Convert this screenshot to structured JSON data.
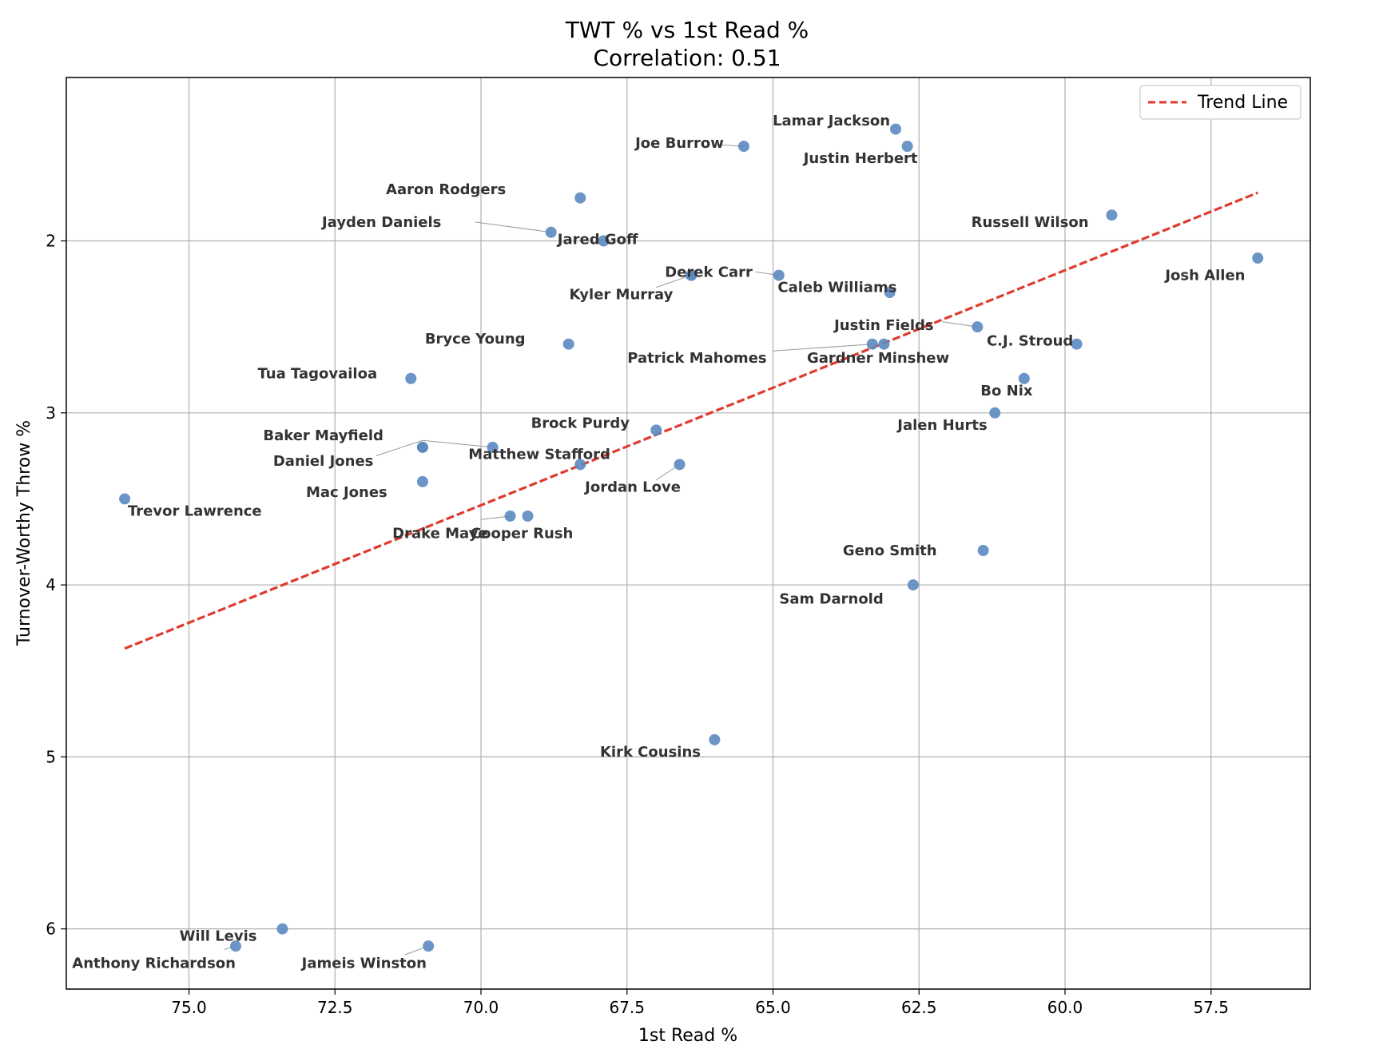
{
  "chart_data": {
    "type": "scatter",
    "title": "TWT % vs 1st Read %",
    "subtitle": "Correlation: 0.51",
    "xlabel": "1st Read %",
    "ylabel": "Turnover-Worthy Throw %",
    "xlim": [
      77.1,
      55.8
    ],
    "ylim": [
      6.35,
      1.05
    ],
    "x_inverted": true,
    "y_inverted": true,
    "xticks": [
      75.0,
      72.5,
      70.0,
      67.5,
      65.0,
      62.5,
      60.0,
      57.5
    ],
    "xtick_labels": [
      "75.0",
      "72.5",
      "70.0",
      "67.5",
      "65.0",
      "62.5",
      "60.0",
      "57.5"
    ],
    "yticks": [
      2,
      3,
      4,
      5,
      6
    ],
    "ytick_labels": [
      "2",
      "3",
      "4",
      "5",
      "6"
    ],
    "grid": true,
    "legend": {
      "placement": "top-right",
      "entries": [
        "Trend Line"
      ]
    },
    "colors": {
      "points": "#5b8ac0",
      "trend": "#e03a2f",
      "grid": "#b0b0b0",
      "labels": "#333333"
    },
    "points": [
      {
        "name": "Lamar Jackson",
        "x": 62.9,
        "y": 1.35
      },
      {
        "name": "Joe Burrow",
        "x": 65.5,
        "y": 1.45
      },
      {
        "name": "Justin Herbert",
        "x": 62.7,
        "y": 1.45
      },
      {
        "name": "Aaron Rodgers",
        "x": 68.3,
        "y": 1.75
      },
      {
        "name": "Russell Wilson",
        "x": 59.2,
        "y": 1.85
      },
      {
        "name": "Jayden Daniels",
        "x": 68.8,
        "y": 1.95
      },
      {
        "name": "Jared Goff",
        "x": 67.9,
        "y": 2.0
      },
      {
        "name": "Josh Allen",
        "x": 56.7,
        "y": 2.1
      },
      {
        "name": "Derek Carr",
        "x": 66.4,
        "y": 2.2
      },
      {
        "name": "Kyler Murray",
        "x": 66.4,
        "y": 2.2
      },
      {
        "name": "Caleb Williams",
        "x": 64.9,
        "y": 2.2
      },
      {
        "name": "Caleb Williams",
        "x": 63.0,
        "y": 2.3
      },
      {
        "name": "Justin Fields",
        "x": 61.5,
        "y": 2.5
      },
      {
        "name": "Bryce Young",
        "x": 68.5,
        "y": 2.6
      },
      {
        "name": "C.J. Stroud",
        "x": 59.8,
        "y": 2.6
      },
      {
        "name": "Patrick Mahomes",
        "x": 63.3,
        "y": 2.6
      },
      {
        "name": "Gardner Minshew",
        "x": 63.1,
        "y": 2.6
      },
      {
        "name": "Tua Tagovailoa",
        "x": 71.2,
        "y": 2.8
      },
      {
        "name": "Bo Nix",
        "x": 60.7,
        "y": 2.8
      },
      {
        "name": "Jalen Hurts",
        "x": 61.2,
        "y": 3.0
      },
      {
        "name": "Brock Purdy",
        "x": 67.0,
        "y": 3.1
      },
      {
        "name": "Baker Mayfield",
        "x": 71.0,
        "y": 3.2
      },
      {
        "name": "Matthew Stafford",
        "x": 69.8,
        "y": 3.2
      },
      {
        "name": "Daniel Jones",
        "x": 71.0,
        "y": 3.2
      },
      {
        "name": "Daniel Jones",
        "x": 68.3,
        "y": 3.3
      },
      {
        "name": "Jordan Love",
        "x": 66.6,
        "y": 3.3
      },
      {
        "name": "Mac Jones",
        "x": 71.0,
        "y": 3.4
      },
      {
        "name": "Trevor Lawrence",
        "x": 76.1,
        "y": 3.5
      },
      {
        "name": "Drake Maye",
        "x": 69.5,
        "y": 3.6
      },
      {
        "name": "Cooper Rush",
        "x": 69.2,
        "y": 3.6
      },
      {
        "name": "Geno Smith",
        "x": 61.4,
        "y": 3.8
      },
      {
        "name": "Sam Darnold",
        "x": 62.6,
        "y": 4.0
      },
      {
        "name": "Kirk Cousins",
        "x": 66.0,
        "y": 4.9
      },
      {
        "name": "Will Levis",
        "x": 73.4,
        "y": 6.0
      },
      {
        "name": "Anthony Richardson",
        "x": 74.2,
        "y": 6.1
      },
      {
        "name": "Jameis Winston",
        "x": 70.9,
        "y": 6.1
      }
    ],
    "labels": [
      {
        "text": "Lamar Jackson",
        "x": 64.0,
        "y": 1.3,
        "anchor": "middle"
      },
      {
        "text": "Joe Burrow",
        "x": 66.6,
        "y": 1.43,
        "anchor": "middle"
      },
      {
        "text": "Justin Herbert",
        "x": 63.5,
        "y": 1.52,
        "anchor": "middle"
      },
      {
        "text": "Aaron Rodgers",
        "x": 70.6,
        "y": 1.7,
        "anchor": "middle"
      },
      {
        "text": "Russell Wilson",
        "x": 60.6,
        "y": 1.89,
        "anchor": "middle"
      },
      {
        "text": "Jayden Daniels",
        "x": 71.7,
        "y": 1.89,
        "anchor": "middle"
      },
      {
        "text": "Jared Goff",
        "x": 68.0,
        "y": 1.99,
        "anchor": "middle"
      },
      {
        "text": "Josh Allen",
        "x": 57.6,
        "y": 2.2,
        "anchor": "middle"
      },
      {
        "text": "Derek Carr",
        "x": 66.1,
        "y": 2.18,
        "anchor": "middle"
      },
      {
        "text": "Kyler Murray",
        "x": 67.6,
        "y": 2.31,
        "anchor": "middle"
      },
      {
        "text": "Caleb Williams",
        "x": 63.9,
        "y": 2.27,
        "anchor": "middle"
      },
      {
        "text": "Justin Fields",
        "x": 63.1,
        "y": 2.49,
        "anchor": "middle"
      },
      {
        "text": "Bryce Young",
        "x": 70.1,
        "y": 2.57,
        "anchor": "middle"
      },
      {
        "text": "C.J. Stroud",
        "x": 60.6,
        "y": 2.58,
        "anchor": "middle"
      },
      {
        "text": "Patrick Mahomes",
        "x": 66.3,
        "y": 2.68,
        "anchor": "middle"
      },
      {
        "text": "Gardner Minshew",
        "x": 63.2,
        "y": 2.68,
        "anchor": "middle"
      },
      {
        "text": "Tua Tagovailoa",
        "x": 72.8,
        "y": 2.77,
        "anchor": "middle"
      },
      {
        "text": "Bo Nix",
        "x": 61.0,
        "y": 2.87,
        "anchor": "middle"
      },
      {
        "text": "Jalen Hurts",
        "x": 62.1,
        "y": 3.07,
        "anchor": "middle"
      },
      {
        "text": "Brock Purdy",
        "x": 68.3,
        "y": 3.06,
        "anchor": "middle"
      },
      {
        "text": "Baker Mayfield",
        "x": 72.7,
        "y": 3.13,
        "anchor": "middle"
      },
      {
        "text": "Matthew Stafford",
        "x": 69.0,
        "y": 3.24,
        "anchor": "middle"
      },
      {
        "text": "Daniel Jones",
        "x": 72.7,
        "y": 3.28,
        "anchor": "middle"
      },
      {
        "text": "Jordan Love",
        "x": 67.4,
        "y": 3.43,
        "anchor": "middle"
      },
      {
        "text": "Mac Jones",
        "x": 72.3,
        "y": 3.46,
        "anchor": "middle"
      },
      {
        "text": "Trevor Lawrence",
        "x": 74.9,
        "y": 3.57,
        "anchor": "middle"
      },
      {
        "text": "Drake Maye",
        "x": 70.7,
        "y": 3.7,
        "anchor": "middle"
      },
      {
        "text": "Cooper Rush",
        "x": 69.3,
        "y": 3.7,
        "anchor": "middle"
      },
      {
        "text": "Geno Smith",
        "x": 63.0,
        "y": 3.8,
        "anchor": "middle"
      },
      {
        "text": "Sam Darnold",
        "x": 64.0,
        "y": 4.08,
        "anchor": "middle"
      },
      {
        "text": "Kirk Cousins",
        "x": 67.1,
        "y": 4.97,
        "anchor": "middle"
      },
      {
        "text": "Will Levis",
        "x": 74.5,
        "y": 6.04,
        "anchor": "middle"
      },
      {
        "text": "Anthony Richardson",
        "x": 75.6,
        "y": 6.2,
        "anchor": "middle"
      },
      {
        "text": "Jameis Winston",
        "x": 72.0,
        "y": 6.2,
        "anchor": "middle"
      }
    ],
    "connectors": [
      {
        "from": [
          66.0,
          1.44
        ],
        "to": [
          65.5,
          1.45
        ]
      },
      {
        "from": [
          70.1,
          1.89
        ],
        "to": [
          68.8,
          1.95
        ]
      },
      {
        "from": [
          65.3,
          2.18
        ],
        "to": [
          64.9,
          2.2
        ]
      },
      {
        "from": [
          67.0,
          2.27
        ],
        "to": [
          66.4,
          2.2
        ]
      },
      {
        "from": [
          62.1,
          2.47
        ],
        "to": [
          61.5,
          2.5
        ]
      },
      {
        "from": [
          65.0,
          2.64
        ],
        "to": [
          63.3,
          2.6
        ]
      },
      {
        "from": [
          71.0,
          3.16
        ],
        "to": [
          71.8,
          3.25
        ]
      },
      {
        "from": [
          71.0,
          3.16
        ],
        "to": [
          69.8,
          3.2
        ]
      },
      {
        "from": [
          67.0,
          3.39
        ],
        "to": [
          66.6,
          3.3
        ]
      },
      {
        "from": [
          70.0,
          3.62
        ],
        "to": [
          69.5,
          3.6
        ]
      },
      {
        "from": [
          74.4,
          6.12
        ],
        "to": [
          74.2,
          6.1
        ]
      },
      {
        "from": [
          71.3,
          6.15
        ],
        "to": [
          70.9,
          6.1
        ]
      }
    ],
    "trend_line": {
      "name": "Trend Line",
      "x": [
        76.1,
        56.7
      ],
      "y": [
        4.37,
        1.72
      ]
    }
  }
}
